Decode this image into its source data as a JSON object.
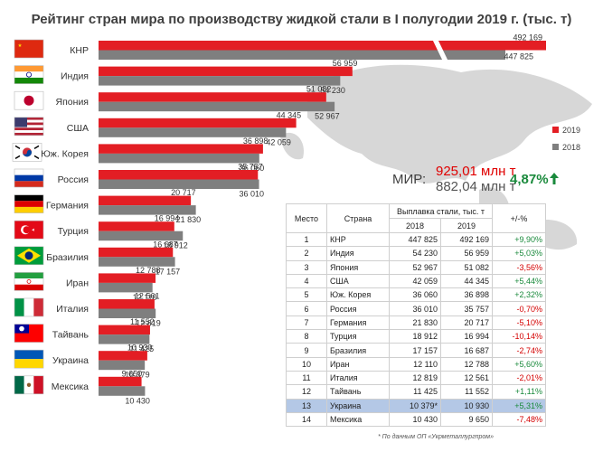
{
  "title": "Рейтинг стран мира по производству жидкой стали в I полугодии 2019 г. (тыс. т)",
  "chart_data": {
    "type": "bar",
    "orientation": "horizontal",
    "categories": [
      "КНР",
      "Индия",
      "Япония",
      "США",
      "Юж. Корея",
      "Россия",
      "Германия",
      "Турция",
      "Бразилия",
      "Иран",
      "Италия",
      "Тайвань",
      "Украина",
      "Мексика"
    ],
    "series": [
      {
        "name": "2019",
        "color": "#e31e24",
        "values": [
          492169,
          56959,
          51082,
          44345,
          36898,
          35757,
          20717,
          16994,
          16687,
          12788,
          12561,
          11552,
          10930,
          9650
        ],
        "labels": [
          "492 169",
          "56 959",
          "51 082",
          "44 345",
          "36 898",
          "35 757",
          "20 717",
          "16 994",
          "16 687",
          "12 788",
          "12 561",
          "11 552",
          "10 930",
          "9 650"
        ]
      },
      {
        "name": "2018",
        "color": "#7f7f7f",
        "values": [
          447825,
          54230,
          52967,
          42059,
          36060,
          36010,
          21830,
          18912,
          17157,
          12110,
          12819,
          11425,
          10379,
          10430
        ],
        "labels": [
          "447 825",
          "54 230",
          "52 967",
          "42 059",
          "36 060",
          "36 010",
          "21 830",
          "18 912",
          "17 157",
          "12 110",
          "12 819",
          "11 425",
          "10 379",
          "10 430"
        ]
      }
    ],
    "axis_break": true,
    "legend": "right",
    "grid": false
  },
  "flags": [
    "china",
    "india",
    "japan",
    "usa",
    "korea",
    "russia",
    "germany",
    "turkey",
    "brazil",
    "iran",
    "italy",
    "taiwan",
    "ukraine",
    "mexico"
  ],
  "totals": {
    "label": "МИР:",
    "value_2019": "925,01 млн т",
    "value_2018": "882,04 млн т",
    "change": "4,87%",
    "arrow_icon": "up-arrow-icon"
  },
  "table": {
    "headers": {
      "place": "Место",
      "country": "Страна",
      "output": "Выплавка стали, тыс. т",
      "year2018": "2018",
      "year2019": "2019",
      "change": "+/-%"
    },
    "rows": [
      {
        "place": "1",
        "country": "КНР",
        "v2018": "447 825",
        "v2019": "492 169",
        "change": "+9,90%",
        "sign": "pos"
      },
      {
        "place": "2",
        "country": "Индия",
        "v2018": "54 230",
        "v2019": "56 959",
        "change": "+5,03%",
        "sign": "pos"
      },
      {
        "place": "3",
        "country": "Япония",
        "v2018": "52 967",
        "v2019": "51 082",
        "change": "-3,56%",
        "sign": "neg"
      },
      {
        "place": "4",
        "country": "США",
        "v2018": "42 059",
        "v2019": "44 345",
        "change": "+5,44%",
        "sign": "pos"
      },
      {
        "place": "5",
        "country": "Юж. Корея",
        "v2018": "36 060",
        "v2019": "36 898",
        "change": "+2,32%",
        "sign": "pos"
      },
      {
        "place": "6",
        "country": "Россия",
        "v2018": "36 010",
        "v2019": "35 757",
        "change": "-0,70%",
        "sign": "neg"
      },
      {
        "place": "7",
        "country": "Германия",
        "v2018": "21 830",
        "v2019": "20 717",
        "change": "-5,10%",
        "sign": "neg"
      },
      {
        "place": "8",
        "country": "Турция",
        "v2018": "18 912",
        "v2019": "16 994",
        "change": "-10,14%",
        "sign": "neg"
      },
      {
        "place": "9",
        "country": "Бразилия",
        "v2018": "17 157",
        "v2019": "16 687",
        "change": "-2,74%",
        "sign": "neg"
      },
      {
        "place": "10",
        "country": "Иран",
        "v2018": "12 110",
        "v2019": "12 788",
        "change": "+5,60%",
        "sign": "pos"
      },
      {
        "place": "11",
        "country": "Италия",
        "v2018": "12 819",
        "v2019": "12 561",
        "change": "-2,01%",
        "sign": "neg"
      },
      {
        "place": "12",
        "country": "Тайвань",
        "v2018": "11 425",
        "v2019": "11 552",
        "change": "+1,11%",
        "sign": "pos"
      },
      {
        "place": "13",
        "country": "Украина",
        "v2018": "10 379*",
        "v2019": "10 930",
        "change": "+5,31%",
        "sign": "pos",
        "highlight": true
      },
      {
        "place": "14",
        "country": "Мексика",
        "v2018": "10 430",
        "v2019": "9 650",
        "change": "-7,48%",
        "sign": "neg"
      }
    ]
  },
  "footnote": "* По данным ОП «Укрметаллургпром»"
}
